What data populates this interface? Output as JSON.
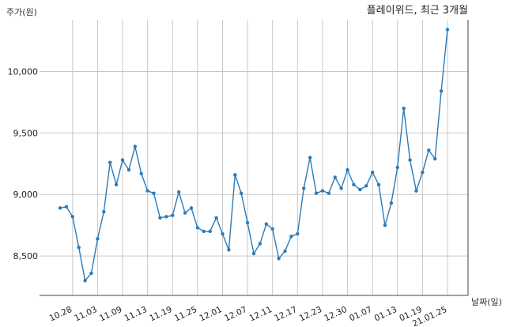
{
  "chart_data": {
    "type": "line",
    "title": "플레이위드, 최근 3개월",
    "ylabel": "주가(원)",
    "xlabel": "날짜(일)",
    "ylim": [
      8180,
      10420
    ],
    "yticks": [
      8500,
      9000,
      9500,
      10000
    ],
    "ytick_labels": [
      "8,500",
      "9,000",
      "9,500",
      "10,000"
    ],
    "xtick_labels": [
      "10.28",
      "11.03",
      "11.09",
      "11.13",
      "11.19",
      "11.25",
      "12.01",
      "12.07",
      "12.11",
      "12.17",
      "12.23",
      "12.30",
      "01.07",
      "01.13",
      "01.19",
      "21.01.25"
    ],
    "xtick_indices": [
      2,
      6,
      10,
      14,
      18,
      22,
      26,
      30,
      34,
      38,
      42,
      46,
      50,
      54,
      58,
      62
    ],
    "grid": true,
    "color": "#2b7bb9",
    "series": [
      {
        "values": [
          8890,
          8900,
          8820,
          8570,
          8300,
          8360,
          8640,
          8860,
          9260,
          9080,
          9280,
          9200,
          9390,
          9170,
          9030,
          9010,
          8810,
          8820,
          8830,
          9020,
          8850,
          8890,
          8730,
          8700,
          8700,
          8810,
          8680,
          8550,
          9160,
          9010,
          8770,
          8520,
          8600,
          8760,
          8720,
          8480,
          8540,
          8660,
          8680,
          9050,
          9300,
          9010,
          9030,
          9010,
          9140,
          9050,
          9200,
          9080,
          9040,
          9070,
          9180,
          9080,
          8750,
          8930,
          9220,
          9700,
          9280,
          9030,
          9180,
          9360,
          9290,
          9840,
          10340
        ]
      }
    ]
  }
}
